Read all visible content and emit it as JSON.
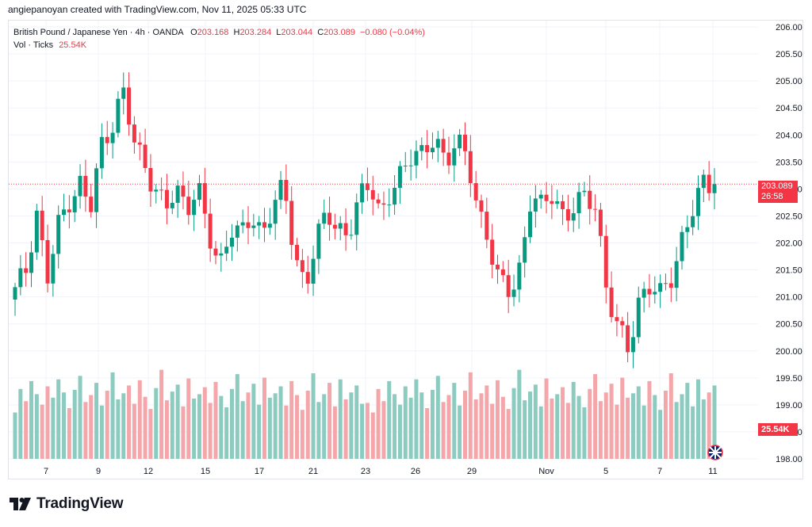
{
  "caption": "angiepanoyan created with TradingView.com, Nov 11, 2025 05:33 UTC",
  "legend": {
    "symbol": "British Pound / Japanese Yen · 4h · OANDA",
    "o_label": "O",
    "o_value": "203.168",
    "h_label": "H",
    "h_value": "203.284",
    "l_label": "L",
    "l_value": "203.044",
    "c_label": "C",
    "c_value": "203.089",
    "change": "−0.080 (−0.04%)",
    "vol_label": "Vol · Ticks",
    "vol_value": "25.54K"
  },
  "badges": {
    "last_price": "203.089",
    "countdown": "26:58",
    "last_volume": "25.54K"
  },
  "brand": {
    "name": "TradingView"
  },
  "colors": {
    "up": "#089981",
    "down": "#f23645",
    "vol_up": "#8ccbbf",
    "vol_down": "#f5a6aa"
  },
  "chart_data": {
    "type": "candlestick",
    "x_ticks": [
      "7",
      "9",
      "12",
      "15",
      "17",
      "21",
      "23",
      "26",
      "29",
      "Nov",
      "5",
      "7",
      "11"
    ],
    "y_ticks": [
      "206.000",
      "205.500",
      "205.000",
      "204.500",
      "204.000",
      "203.500",
      "203.000",
      "202.500",
      "202.000",
      "201.500",
      "201.000",
      "200.500",
      "200.000",
      "199.500",
      "199.000",
      "198.500",
      "198.000"
    ],
    "ylim": [
      198.0,
      206.0
    ],
    "last_price": 203.089,
    "close_path": [
      201.1,
      201.5,
      202.6,
      201.3,
      202.3,
      202.8,
      203.1,
      202.6,
      203.8,
      204.2,
      204.8,
      203.9,
      203.5,
      203.0,
      202.6,
      203.0,
      202.7,
      203.0,
      202.1,
      201.6,
      202.3,
      202.1,
      202.5,
      202.2,
      202.7,
      203.0,
      201.8,
      201.2,
      202.0,
      202.6,
      202.3,
      202.1,
      202.8,
      203.2,
      202.5,
      202.9,
      203.3,
      203.8,
      203.6,
      203.9,
      203.5,
      204.0,
      203.5,
      202.6,
      202.1,
      201.3,
      201.0,
      201.6,
      203.0,
      202.6,
      202.9,
      202.5,
      202.7,
      202.8,
      202.7,
      201.1,
      200.4,
      200.0,
      201.0,
      201.2,
      201.0,
      201.4,
      202.1,
      202.6,
      203.1,
      203.089
    ],
    "volume_levels": [
      0.35,
      0.62,
      0.48,
      0.71,
      0.56,
      0.44,
      0.65,
      0.52,
      0.73,
      0.58,
      0.4,
      0.61,
      0.77,
      0.47,
      0.55,
      0.69,
      0.43,
      0.6,
      0.81,
      0.5,
      0.57,
      0.66,
      0.45,
      0.72,
      0.53,
      0.39,
      0.63,
      0.84,
      0.49,
      0.59,
      0.67,
      0.42,
      0.74,
      0.51,
      0.56,
      0.64,
      0.46,
      0.7,
      0.54,
      0.41,
      0.62,
      0.79,
      0.48,
      0.58,
      0.68,
      0.44,
      0.75,
      0.52,
      0.57,
      0.65,
      0.43,
      0.71,
      0.55,
      0.38,
      0.6,
      0.8,
      0.47,
      0.56,
      0.69,
      0.42,
      0.73,
      0.5,
      0.58,
      0.66,
      0.45,
      0.46
    ]
  }
}
